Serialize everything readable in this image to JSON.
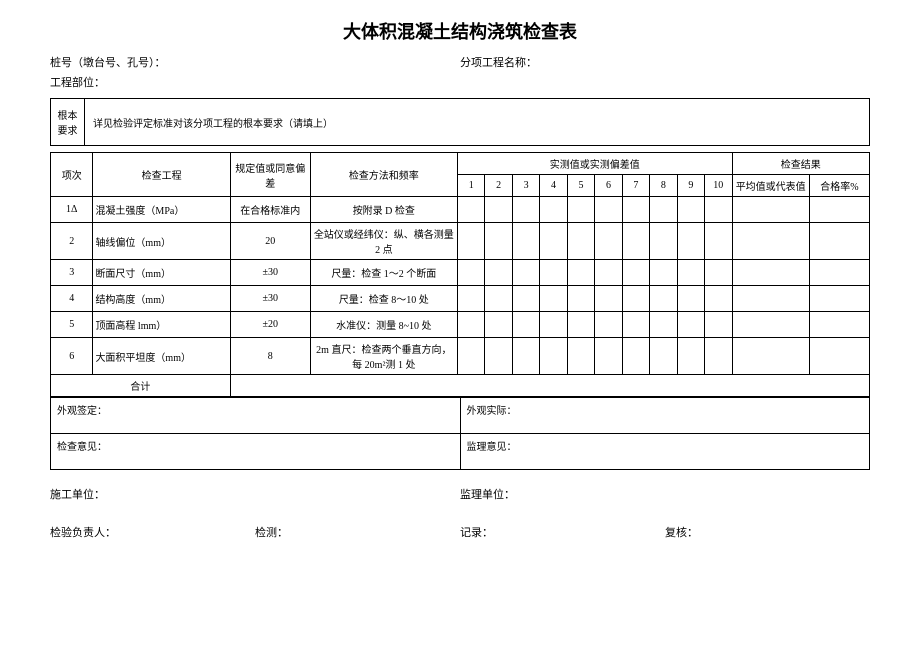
{
  "title": "大体积混凝土结构浇筑检查表",
  "meta": {
    "pile_label": "桩号（墩台号、孔号）：",
    "sub_label": "分项工程名称：",
    "section_label": "工程部位："
  },
  "req": {
    "header": "根本要求",
    "text": "详见检验评定标准对该分项工程的根本要求（请填上）"
  },
  "headers": {
    "seq": "项次",
    "item": "检查工程",
    "spec": "规定值或同意偏差",
    "method": "检查方法和频率",
    "measured": "实测值或实测偏差值",
    "result": "检查结果",
    "avg": "平均值或代表值",
    "pass": "合格率%",
    "n1": "1",
    "n2": "2",
    "n3": "3",
    "n4": "4",
    "n5": "5",
    "n6": "6",
    "n7": "7",
    "n8": "8",
    "n9": "9",
    "n10": "10"
  },
  "rows": [
    {
      "seq": "1Δ",
      "item": "混凝土强度（MPa）",
      "spec": "在合格标准内",
      "method": "按附录 D 检查"
    },
    {
      "seq": "2",
      "item": "轴线偏位（mm）",
      "spec": "20",
      "method": "全站仪或经纬仪：纵、横各测量 2 点"
    },
    {
      "seq": "3",
      "item": "断面尺寸（mm）",
      "spec": "±30",
      "method": "尺量：检查 1～2 个断面"
    },
    {
      "seq": "4",
      "item": "结构高度（mm）",
      "spec": "±30",
      "method": "尺量：检查 8～10 处"
    },
    {
      "seq": "5",
      "item": "顶面高程 lmm）",
      "spec": "±20",
      "method": "水准仪：测量 8~10 处"
    },
    {
      "seq": "6",
      "item": "大面积平坦度（mm）",
      "spec": "8",
      "method": "2m 直尺：检查两个垂直方向，每 20m²测 1 处"
    }
  ],
  "total_label": "合计",
  "sig": {
    "look_sign": "外观签定：",
    "look_actual": "外观实际：",
    "check_opinion": "检查意见：",
    "supervise_opinion": "监理意见："
  },
  "bottom": {
    "construct": "施工单位：",
    "supervise": "监理单位：",
    "inspector": "检验负责人：",
    "detect": "检测：",
    "record": "记录：",
    "review": "复核："
  }
}
